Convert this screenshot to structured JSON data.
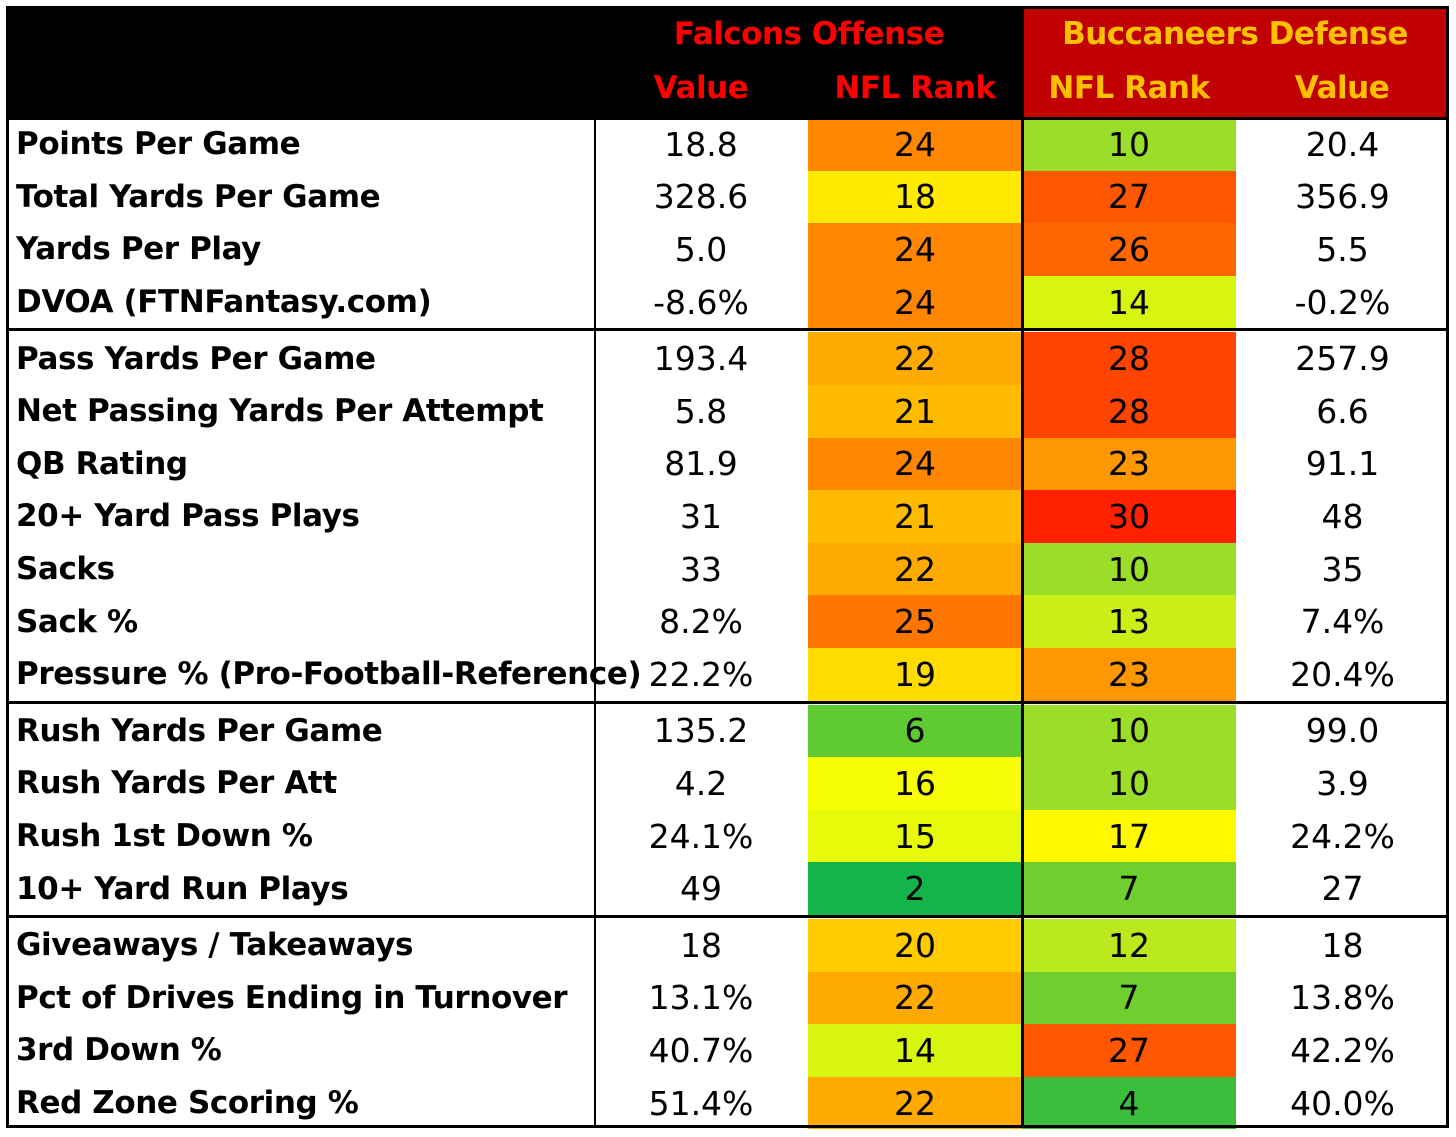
{
  "header": {
    "offense_title": "Falcons Offense",
    "defense_title": "Buccaneers Defense",
    "offense_value_label": "Value",
    "offense_rank_label": "NFL Rank",
    "defense_rank_label": "NFL Rank",
    "defense_value_label": "Value"
  },
  "colors": {
    "header_left_bg": "#000000",
    "header_right_bg": "#c00000",
    "offense_title_color": "#ff0000",
    "defense_title_color": "#ffc000",
    "rank_scale": "green (1) to yellow (16) to red (32)"
  },
  "chart_data": {
    "type": "table",
    "columns": [
      "",
      "Value",
      "NFL Rank",
      "NFL Rank",
      "Value"
    ],
    "groups": [
      [
        {
          "stat": "Points Per Game",
          "off_value": "18.8",
          "off_rank": 24,
          "def_rank": 10,
          "def_value": "20.4"
        },
        {
          "stat": "Total Yards Per Game",
          "off_value": "328.6",
          "off_rank": 18,
          "def_rank": 27,
          "def_value": "356.9"
        },
        {
          "stat": "Yards Per Play",
          "off_value": "5.0",
          "off_rank": 24,
          "def_rank": 26,
          "def_value": "5.5"
        },
        {
          "stat": "DVOA (FTNFantasy.com)",
          "off_value": "-8.6%",
          "off_rank": 24,
          "def_rank": 14,
          "def_value": "-0.2%"
        }
      ],
      [
        {
          "stat": "Pass Yards Per Game",
          "off_value": "193.4",
          "off_rank": 22,
          "def_rank": 28,
          "def_value": "257.9"
        },
        {
          "stat": "Net Passing Yards Per Attempt",
          "off_value": "5.8",
          "off_rank": 21,
          "def_rank": 28,
          "def_value": "6.6"
        },
        {
          "stat": "QB Rating",
          "off_value": "81.9",
          "off_rank": 24,
          "def_rank": 23,
          "def_value": "91.1"
        },
        {
          "stat": "20+ Yard Pass Plays",
          "off_value": "31",
          "off_rank": 21,
          "def_rank": 30,
          "def_value": "48"
        },
        {
          "stat": "Sacks",
          "off_value": "33",
          "off_rank": 22,
          "def_rank": 10,
          "def_value": "35"
        },
        {
          "stat": "Sack %",
          "off_value": "8.2%",
          "off_rank": 25,
          "def_rank": 13,
          "def_value": "7.4%"
        },
        {
          "stat": "Pressure % (Pro-Football-Reference)",
          "off_value": "22.2%",
          "off_rank": 19,
          "def_rank": 23,
          "def_value": "20.4%"
        }
      ],
      [
        {
          "stat": "Rush Yards Per Game",
          "off_value": "135.2",
          "off_rank": 6,
          "def_rank": 10,
          "def_value": "99.0"
        },
        {
          "stat": "Rush Yards Per Att",
          "off_value": "4.2",
          "off_rank": 16,
          "def_rank": 10,
          "def_value": "3.9"
        },
        {
          "stat": "Rush 1st Down %",
          "off_value": "24.1%",
          "off_rank": 15,
          "def_rank": 17,
          "def_value": "24.2%"
        },
        {
          "stat": "10+ Yard Run Plays",
          "off_value": "49",
          "off_rank": 2,
          "def_rank": 7,
          "def_value": "27"
        }
      ],
      [
        {
          "stat": "Giveaways / Takeaways",
          "off_value": "18",
          "off_rank": 20,
          "def_rank": 12,
          "def_value": "18"
        },
        {
          "stat": "Pct of Drives Ending in Turnover",
          "off_value": "13.1%",
          "off_rank": 22,
          "def_rank": 7,
          "def_value": "13.8%"
        },
        {
          "stat": "3rd Down %",
          "off_value": "40.7%",
          "off_rank": 14,
          "def_rank": 27,
          "def_value": "42.2%"
        },
        {
          "stat": "Red Zone Scoring %",
          "off_value": "51.4%",
          "off_rank": 22,
          "def_rank": 4,
          "def_value": "40.0%"
        }
      ]
    ]
  }
}
